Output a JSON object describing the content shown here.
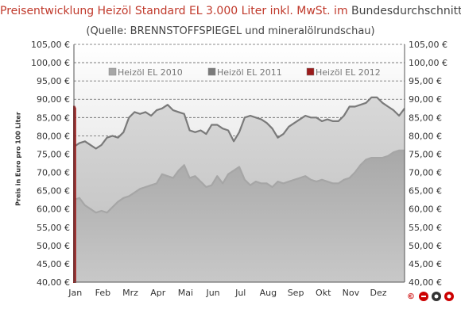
{
  "title_red": "Preisentwicklung Heizöl Standard EL 3.000 Liter inkl. MwSt. im",
  "title_dark": "Bundesdurchschnitt",
  "subtitle": "(Quelle: BRENNSTOFFSPIEGEL und mineralölrundschau)",
  "logo_text": "©",
  "chart_data": {
    "type": "area",
    "ylabel": "Preis in Euro pro 100 Liter",
    "ylim": [
      40,
      105
    ],
    "ytick_step": 5,
    "yticks": [
      "40,00 €",
      "45,00 €",
      "50,00 €",
      "55,00 €",
      "60,00 €",
      "65,00 €",
      "70,00 €",
      "75,00 €",
      "80,00 €",
      "85,00 €",
      "90,00 €",
      "95,00 €",
      "100,00 €",
      "105,00 €"
    ],
    "categories": [
      "Jan",
      "Feb",
      "Mrz",
      "Apr",
      "Mai",
      "Jun",
      "Jul",
      "Aug",
      "Sep",
      "Okt",
      "Nov",
      "Dez"
    ],
    "grid": "horizontal dashed",
    "legend_position": "top-left inside",
    "colors": {
      "2010": "#a6a6a6",
      "2011": "#7a7a7a",
      "2012": "#9b1b1b"
    },
    "series": [
      {
        "name": "Heizöl EL 2010",
        "x": [
          0,
          0.2,
          0.4,
          0.6,
          0.8,
          1.0,
          1.2,
          1.4,
          1.6,
          1.8,
          2.0,
          2.2,
          2.4,
          2.6,
          2.8,
          3.0,
          3.2,
          3.4,
          3.6,
          3.8,
          4.0,
          4.2,
          4.4,
          4.6,
          4.8,
          5.0,
          5.2,
          5.4,
          5.6,
          5.8,
          6.0,
          6.2,
          6.4,
          6.6,
          6.8,
          7.0,
          7.2,
          7.4,
          7.6,
          7.8,
          8.0,
          8.2,
          8.4,
          8.6,
          8.8,
          9.0,
          9.2,
          9.4,
          9.6,
          9.8,
          10.0,
          10.2,
          10.4,
          10.6,
          10.8,
          11.0,
          11.2,
          11.4,
          11.6,
          11.8,
          12.0
        ],
        "values": [
          62.5,
          63.0,
          61.0,
          60.0,
          59.0,
          59.5,
          59.0,
          60.5,
          62.0,
          63.0,
          63.5,
          64.5,
          65.5,
          66.0,
          66.5,
          67.0,
          69.5,
          69.0,
          68.5,
          70.5,
          72.0,
          68.5,
          69.0,
          67.5,
          66.0,
          66.5,
          69.0,
          67.0,
          69.5,
          70.5,
          71.5,
          68.0,
          66.5,
          67.5,
          67.0,
          67.0,
          66.0,
          67.5,
          67.0,
          67.5,
          68.0,
          68.5,
          69.0,
          68.0,
          67.5,
          68.0,
          67.5,
          67.0,
          67.0,
          68.0,
          68.5,
          70.0,
          72.0,
          73.5,
          74.0,
          74.0,
          74.0,
          74.5,
          75.5,
          76.0,
          76.0
        ]
      },
      {
        "name": "Heizöl EL 2011",
        "x": [
          0,
          0.2,
          0.4,
          0.6,
          0.8,
          1.0,
          1.2,
          1.4,
          1.6,
          1.8,
          2.0,
          2.2,
          2.4,
          2.6,
          2.8,
          3.0,
          3.2,
          3.4,
          3.6,
          3.8,
          4.0,
          4.2,
          4.4,
          4.6,
          4.8,
          5.0,
          5.2,
          5.4,
          5.6,
          5.8,
          6.0,
          6.2,
          6.4,
          6.6,
          6.8,
          7.0,
          7.2,
          7.4,
          7.6,
          7.8,
          8.0,
          8.2,
          8.4,
          8.6,
          8.8,
          9.0,
          9.2,
          9.4,
          9.6,
          9.8,
          10.0,
          10.2,
          10.4,
          10.6,
          10.8,
          11.0,
          11.2,
          11.4,
          11.6,
          11.8,
          12.0
        ],
        "values": [
          77.0,
          78.0,
          78.5,
          77.5,
          76.5,
          77.5,
          79.5,
          80.0,
          79.5,
          81.0,
          85.0,
          86.5,
          86.0,
          86.5,
          85.5,
          87.0,
          87.5,
          88.5,
          87.0,
          86.5,
          86.0,
          81.5,
          81.0,
          81.5,
          80.5,
          83.0,
          83.0,
          82.0,
          81.5,
          78.5,
          81.0,
          85.0,
          85.5,
          85.0,
          84.5,
          83.5,
          82.0,
          79.5,
          80.5,
          82.5,
          83.5,
          84.5,
          85.5,
          85.0,
          85.0,
          84.0,
          84.5,
          84.0,
          84.0,
          85.5,
          88.0,
          88.0,
          88.5,
          89.0,
          90.5,
          90.5,
          89.0,
          88.0,
          87.0,
          85.5,
          87.5
        ]
      },
      {
        "name": "Heizöl EL 2012",
        "x": [
          0,
          0.02,
          0.05
        ],
        "values": [
          88.0,
          88.0,
          87.5
        ]
      }
    ]
  }
}
